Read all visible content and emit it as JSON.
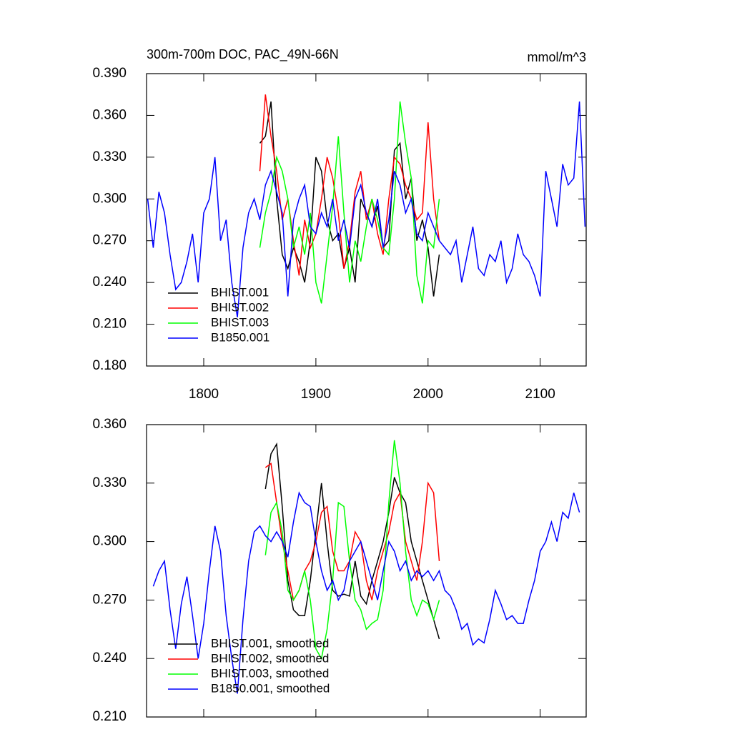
{
  "chart_data": [
    {
      "type": "line",
      "title": "300m-700m DOC, PAC_49N-66N",
      "units": "mmol/m^3",
      "xlim": [
        1749,
        2141
      ],
      "xticks": [
        1800,
        1900,
        2000,
        2100
      ],
      "xtick_labels": true,
      "ylim": [
        0.18,
        0.39
      ],
      "yticks": [
        {
          "value": 0.18,
          "label": "0.180"
        },
        {
          "value": 0.21,
          "label": "0.210"
        },
        {
          "value": 0.24,
          "label": "0.240"
        },
        {
          "value": 0.27,
          "label": "0.270"
        },
        {
          "value": 0.3,
          "label": "0.300"
        },
        {
          "value": 0.33,
          "label": "0.330"
        },
        {
          "value": 0.36,
          "label": "0.360"
        },
        {
          "value": 0.39,
          "label": "0.390"
        }
      ],
      "legend": "lower left",
      "series": [
        {
          "name": "BHIST.001",
          "color": "#000000",
          "x": [
            1850,
            1855,
            1860,
            1865,
            1870,
            1875,
            1880,
            1885,
            1890,
            1895,
            1900,
            1905,
            1910,
            1915,
            1920,
            1925,
            1930,
            1935,
            1940,
            1945,
            1950,
            1955,
            1960,
            1965,
            1970,
            1975,
            1980,
            1985,
            1990,
            1995,
            2000,
            2005,
            2010
          ],
          "values": [
            0.34,
            0.345,
            0.37,
            0.3,
            0.26,
            0.25,
            0.265,
            0.255,
            0.24,
            0.27,
            0.33,
            0.32,
            0.285,
            0.27,
            0.275,
            0.25,
            0.265,
            0.24,
            0.3,
            0.29,
            0.28,
            0.295,
            0.265,
            0.27,
            0.335,
            0.34,
            0.3,
            0.315,
            0.27,
            0.285,
            0.265,
            0.23,
            0.26
          ]
        },
        {
          "name": "BHIST.002",
          "color": "#ff0000",
          "x": [
            1850,
            1855,
            1860,
            1865,
            1870,
            1875,
            1880,
            1885,
            1890,
            1895,
            1900,
            1905,
            1910,
            1915,
            1920,
            1925,
            1930,
            1935,
            1940,
            1945,
            1950,
            1955,
            1960,
            1965,
            1970,
            1975,
            1980,
            1985,
            1990,
            1995,
            2000,
            2005,
            2010
          ],
          "values": [
            0.32,
            0.375,
            0.345,
            0.32,
            0.285,
            0.3,
            0.27,
            0.245,
            0.285,
            0.265,
            0.275,
            0.3,
            0.33,
            0.315,
            0.29,
            0.25,
            0.27,
            0.305,
            0.32,
            0.285,
            0.3,
            0.275,
            0.26,
            0.3,
            0.33,
            0.325,
            0.31,
            0.3,
            0.285,
            0.29,
            0.355,
            0.3,
            0.27
          ]
        },
        {
          "name": "BHIST.003",
          "color": "#00ff00",
          "x": [
            1850,
            1855,
            1860,
            1865,
            1870,
            1875,
            1880,
            1885,
            1890,
            1895,
            1900,
            1905,
            1910,
            1915,
            1920,
            1925,
            1930,
            1935,
            1940,
            1945,
            1950,
            1955,
            1960,
            1965,
            1970,
            1975,
            1980,
            1985,
            1990,
            1995,
            2000,
            2005,
            2010
          ],
          "values": [
            0.265,
            0.29,
            0.305,
            0.33,
            0.32,
            0.3,
            0.265,
            0.28,
            0.26,
            0.29,
            0.24,
            0.225,
            0.26,
            0.295,
            0.345,
            0.29,
            0.24,
            0.27,
            0.255,
            0.28,
            0.3,
            0.285,
            0.265,
            0.26,
            0.3,
            0.37,
            0.34,
            0.315,
            0.245,
            0.225,
            0.27,
            0.265,
            0.3
          ]
        },
        {
          "name": "B1850.001",
          "color": "#0000ff",
          "x": [
            1750,
            1755,
            1760,
            1765,
            1770,
            1775,
            1780,
            1785,
            1790,
            1795,
            1800,
            1805,
            1810,
            1815,
            1820,
            1825,
            1830,
            1835,
            1840,
            1845,
            1850,
            1855,
            1860,
            1865,
            1870,
            1875,
            1880,
            1885,
            1890,
            1895,
            1900,
            1905,
            1910,
            1915,
            1920,
            1925,
            1930,
            1935,
            1940,
            1945,
            1950,
            1955,
            1960,
            1965,
            1970,
            1975,
            1980,
            1985,
            1990,
            1995,
            2000,
            2005,
            2010,
            2015,
            2020,
            2025,
            2030,
            2035,
            2040,
            2045,
            2050,
            2055,
            2060,
            2065,
            2070,
            2075,
            2080,
            2085,
            2090,
            2095,
            2100,
            2105,
            2110,
            2115,
            2120,
            2125,
            2130,
            2135,
            2140
          ],
          "values": [
            0.3,
            0.265,
            0.305,
            0.29,
            0.26,
            0.235,
            0.24,
            0.255,
            0.275,
            0.24,
            0.29,
            0.3,
            0.33,
            0.27,
            0.285,
            0.24,
            0.215,
            0.265,
            0.29,
            0.3,
            0.285,
            0.31,
            0.32,
            0.305,
            0.29,
            0.23,
            0.285,
            0.3,
            0.31,
            0.28,
            0.275,
            0.29,
            0.28,
            0.3,
            0.27,
            0.285,
            0.265,
            0.3,
            0.31,
            0.29,
            0.28,
            0.3,
            0.265,
            0.285,
            0.32,
            0.31,
            0.29,
            0.3,
            0.275,
            0.27,
            0.29,
            0.28,
            0.27,
            0.265,
            0.26,
            0.27,
            0.24,
            0.26,
            0.28,
            0.25,
            0.245,
            0.26,
            0.255,
            0.27,
            0.24,
            0.25,
            0.275,
            0.26,
            0.255,
            0.245,
            0.23,
            0.32,
            0.3,
            0.28,
            0.325,
            0.31,
            0.315,
            0.37,
            0.28
          ]
        }
      ]
    },
    {
      "type": "line",
      "xlim": [
        1749,
        2141
      ],
      "xticks": [
        1800,
        1900,
        2000,
        2100
      ],
      "xtick_labels": false,
      "ylim": [
        0.21,
        0.36
      ],
      "yticks": [
        {
          "value": 0.21,
          "label": "0.210"
        },
        {
          "value": 0.24,
          "label": "0.240"
        },
        {
          "value": 0.27,
          "label": "0.270"
        },
        {
          "value": 0.3,
          "label": "0.300"
        },
        {
          "value": 0.33,
          "label": "0.330"
        },
        {
          "value": 0.36,
          "label": "0.360"
        }
      ],
      "legend": "lower left",
      "series": [
        {
          "name": "BHIST.001, smoothed",
          "color": "#000000",
          "x": [
            1855,
            1860,
            1865,
            1870,
            1875,
            1880,
            1885,
            1890,
            1895,
            1900,
            1905,
            1910,
            1915,
            1920,
            1925,
            1930,
            1935,
            1940,
            1945,
            1950,
            1955,
            1960,
            1965,
            1970,
            1975,
            1980,
            1985,
            1990,
            1995,
            2000,
            2005,
            2010
          ],
          "values": [
            0.327,
            0.345,
            0.35,
            0.318,
            0.28,
            0.265,
            0.262,
            0.262,
            0.28,
            0.305,
            0.33,
            0.3,
            0.275,
            0.272,
            0.273,
            0.272,
            0.29,
            0.272,
            0.268,
            0.28,
            0.29,
            0.3,
            0.315,
            0.333,
            0.325,
            0.32,
            0.3,
            0.29,
            0.28,
            0.27,
            0.26,
            0.25
          ]
        },
        {
          "name": "BHIST.002, smoothed",
          "color": "#ff0000",
          "x": [
            1855,
            1860,
            1865,
            1870,
            1875,
            1880,
            1885,
            1890,
            1895,
            1900,
            1905,
            1910,
            1915,
            1920,
            1925,
            1930,
            1935,
            1940,
            1945,
            1950,
            1955,
            1960,
            1965,
            1970,
            1975,
            1980,
            1985,
            1990,
            1995,
            2000,
            2005,
            2010
          ],
          "values": [
            0.338,
            0.34,
            0.32,
            0.3,
            0.285,
            0.27,
            0.275,
            0.285,
            0.29,
            0.3,
            0.315,
            0.318,
            0.295,
            0.285,
            0.285,
            0.29,
            0.305,
            0.3,
            0.28,
            0.27,
            0.285,
            0.295,
            0.305,
            0.32,
            0.325,
            0.3,
            0.29,
            0.28,
            0.3,
            0.33,
            0.325,
            0.29
          ]
        },
        {
          "name": "BHIST.003, smoothed",
          "color": "#00ff00",
          "x": [
            1855,
            1860,
            1865,
            1870,
            1875,
            1880,
            1885,
            1890,
            1895,
            1900,
            1905,
            1910,
            1915,
            1920,
            1925,
            1930,
            1935,
            1940,
            1945,
            1950,
            1955,
            1960,
            1965,
            1970,
            1975,
            1980,
            1985,
            1990,
            1995,
            2000,
            2005,
            2010
          ],
          "values": [
            0.293,
            0.315,
            0.32,
            0.305,
            0.275,
            0.27,
            0.275,
            0.285,
            0.27,
            0.245,
            0.24,
            0.255,
            0.28,
            0.32,
            0.318,
            0.29,
            0.27,
            0.265,
            0.255,
            0.258,
            0.26,
            0.275,
            0.32,
            0.352,
            0.33,
            0.295,
            0.27,
            0.262,
            0.27,
            0.268,
            0.26,
            0.27
          ]
        },
        {
          "name": "B1850.001, smoothed",
          "color": "#0000ff",
          "x": [
            1755,
            1760,
            1765,
            1770,
            1775,
            1780,
            1785,
            1790,
            1795,
            1800,
            1805,
            1810,
            1815,
            1820,
            1825,
            1830,
            1835,
            1840,
            1845,
            1850,
            1855,
            1860,
            1865,
            1870,
            1875,
            1880,
            1885,
            1890,
            1895,
            1900,
            1905,
            1910,
            1915,
            1920,
            1925,
            1930,
            1935,
            1940,
            1945,
            1950,
            1955,
            1960,
            1965,
            1970,
            1975,
            1980,
            1985,
            1990,
            1995,
            2000,
            2005,
            2010,
            2015,
            2020,
            2025,
            2030,
            2035,
            2040,
            2045,
            2050,
            2055,
            2060,
            2065,
            2070,
            2075,
            2080,
            2085,
            2090,
            2095,
            2100,
            2105,
            2110,
            2115,
            2120,
            2125,
            2130,
            2135
          ],
          "values": [
            0.277,
            0.285,
            0.29,
            0.265,
            0.245,
            0.268,
            0.282,
            0.262,
            0.24,
            0.258,
            0.285,
            0.308,
            0.295,
            0.262,
            0.24,
            0.222,
            0.26,
            0.29,
            0.305,
            0.308,
            0.303,
            0.3,
            0.305,
            0.3,
            0.292,
            0.31,
            0.325,
            0.32,
            0.318,
            0.3,
            0.285,
            0.275,
            0.28,
            0.27,
            0.275,
            0.29,
            0.295,
            0.3,
            0.29,
            0.28,
            0.27,
            0.285,
            0.3,
            0.295,
            0.285,
            0.29,
            0.28,
            0.285,
            0.282,
            0.285,
            0.28,
            0.285,
            0.275,
            0.272,
            0.265,
            0.255,
            0.258,
            0.247,
            0.25,
            0.248,
            0.26,
            0.275,
            0.268,
            0.26,
            0.262,
            0.258,
            0.258,
            0.27,
            0.28,
            0.295,
            0.3,
            0.31,
            0.3,
            0.315,
            0.312,
            0.325,
            0.315
          ]
        }
      ]
    }
  ]
}
